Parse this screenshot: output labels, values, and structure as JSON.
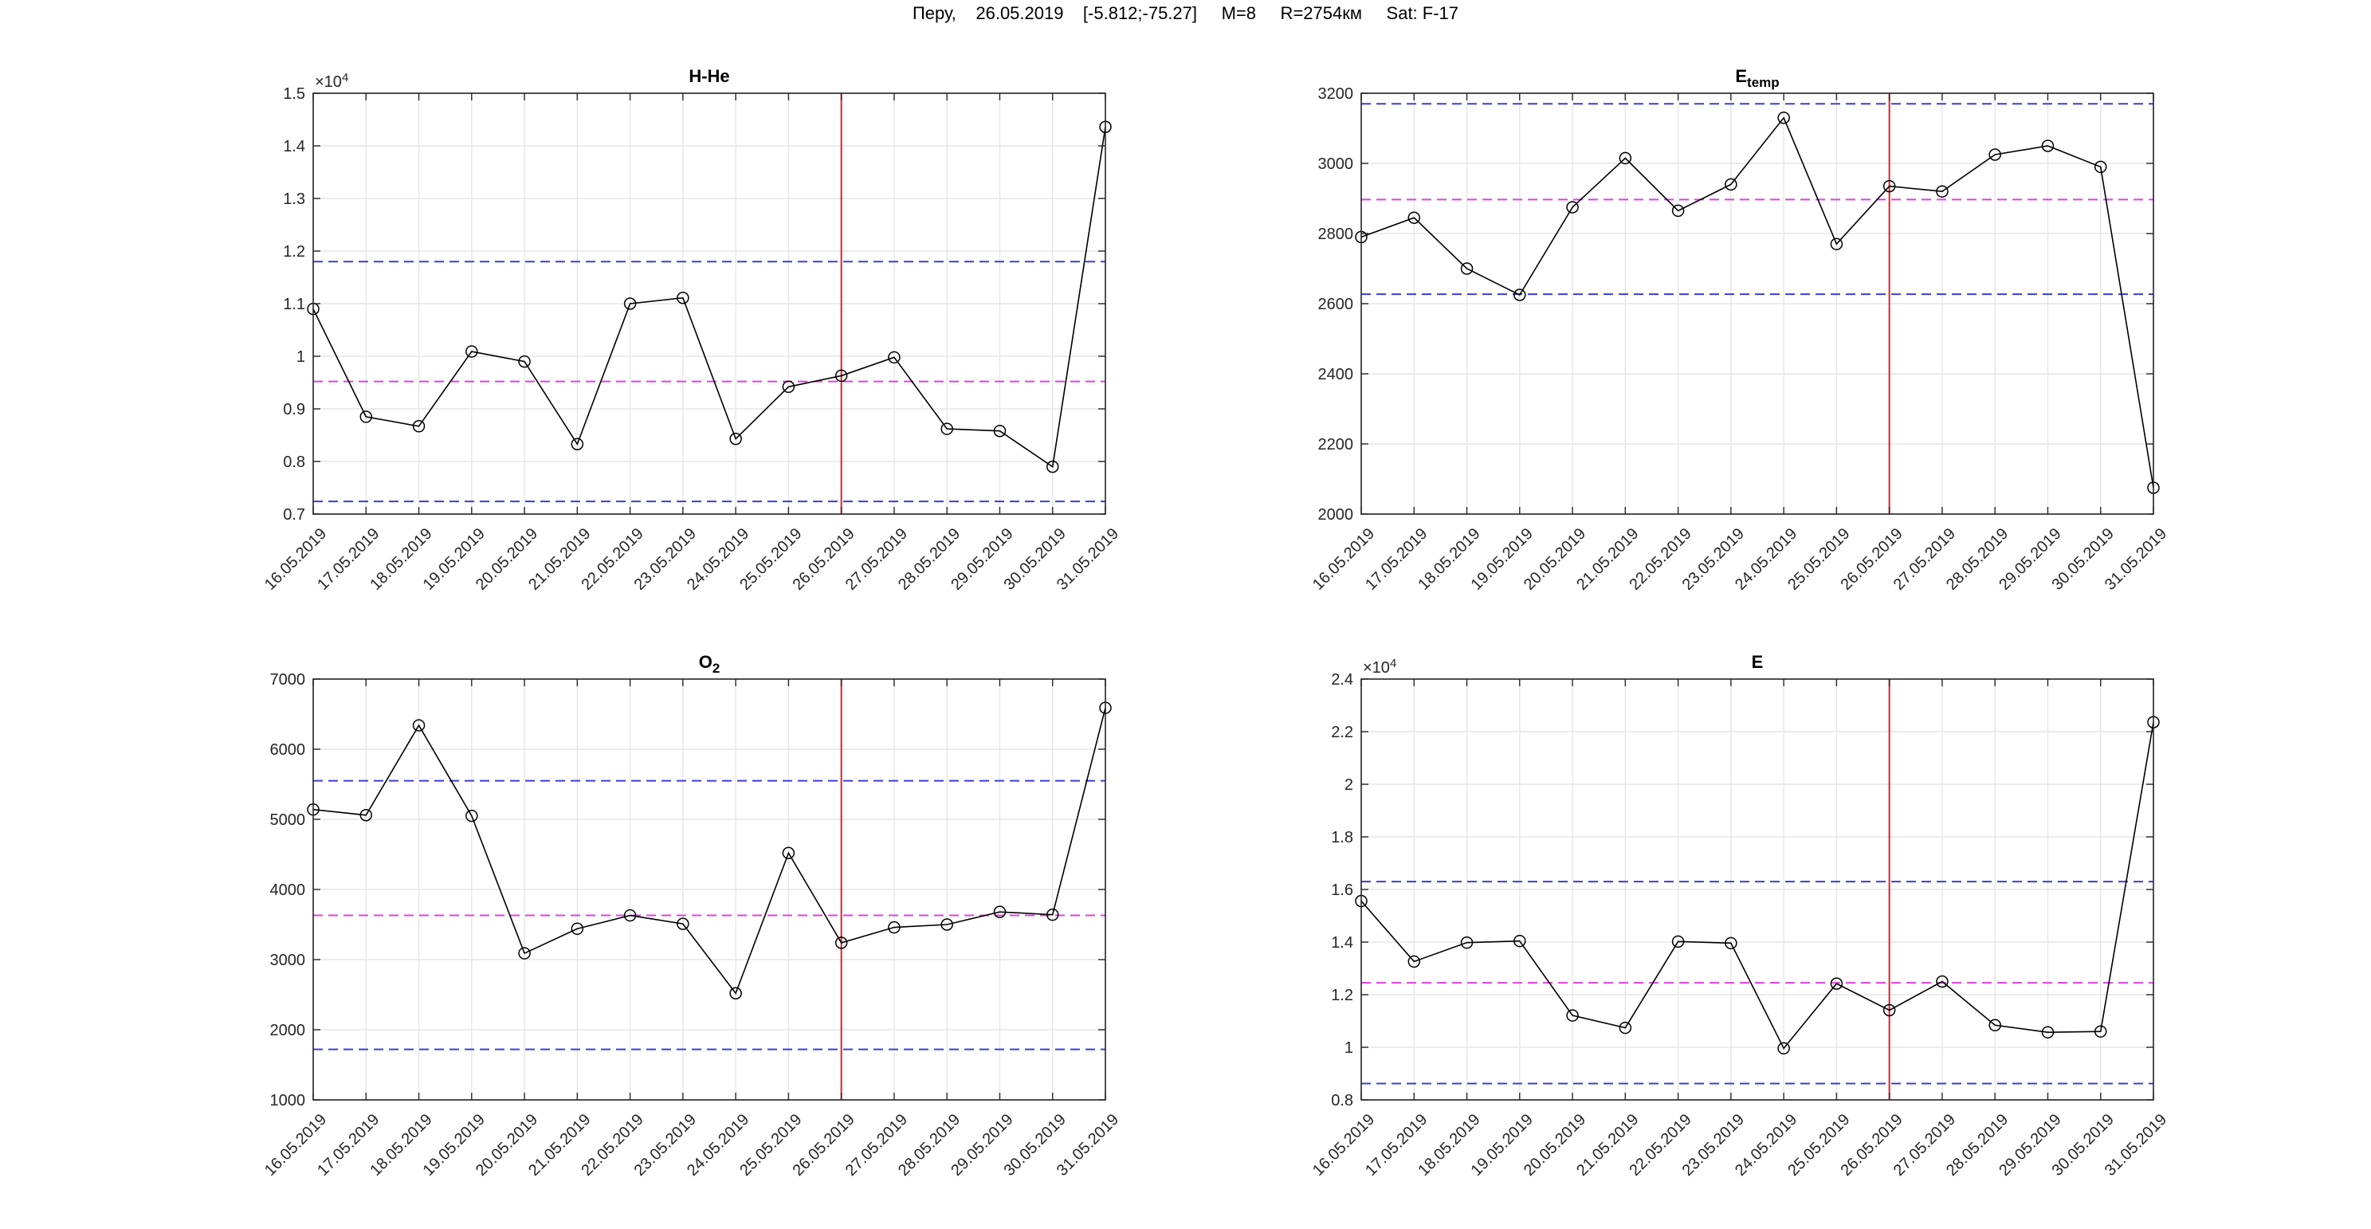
{
  "figure": {
    "suptitle": "Перу,    26.05.2019    [-5.812;-75.27]     M=8     R=2754км     Sat: F-17"
  },
  "colors": {
    "series": "#000000",
    "event_line": "#e0202a",
    "threshold_outer": "#3c3cd8",
    "threshold_mean": "#e040e0",
    "grid": "#e6e6e6",
    "axes": "#262626"
  },
  "chart_data": [
    {
      "type": "line",
      "title": "H-He",
      "title_sub": "",
      "exponent_label": "×10",
      "exponent_power": "4",
      "categories": [
        "16.05.2019",
        "17.05.2019",
        "18.05.2019",
        "19.05.2019",
        "20.05.2019",
        "21.05.2019",
        "22.05.2019",
        "23.05.2019",
        "24.05.2019",
        "25.05.2019",
        "26.05.2019",
        "27.05.2019",
        "28.05.2019",
        "29.05.2019",
        "30.05.2019",
        "31.05.2019"
      ],
      "values": [
        10900,
        8850,
        8670,
        10090,
        9900,
        8330,
        11000,
        11110,
        8430,
        9420,
        9630,
        9980,
        8620,
        8580,
        7900,
        14360
      ],
      "ylim": [
        7000,
        15000
      ],
      "yticks": [
        7000,
        8000,
        9000,
        10000,
        11000,
        12000,
        13000,
        14000,
        15000
      ],
      "ytick_labels": [
        "0.7",
        "0.8",
        "0.9",
        "1",
        "1.1",
        "1.2",
        "1.3",
        "1.4",
        "1.5"
      ],
      "thresholds": {
        "upper": 11800,
        "mean": 9520,
        "lower": 7240
      },
      "event_index": 10,
      "grid": true
    },
    {
      "type": "line",
      "title": "E",
      "title_sub": "temp",
      "exponent_label": "",
      "exponent_power": "",
      "categories": [
        "16.05.2019",
        "17.05.2019",
        "18.05.2019",
        "19.05.2019",
        "20.05.2019",
        "21.05.2019",
        "22.05.2019",
        "23.05.2019",
        "24.05.2019",
        "25.05.2019",
        "26.05.2019",
        "27.05.2019",
        "28.05.2019",
        "29.05.2019",
        "30.05.2019",
        "31.05.2019"
      ],
      "values": [
        2790,
        2845,
        2700,
        2625,
        2875,
        3015,
        2865,
        2940,
        3130,
        2770,
        2935,
        2920,
        3025,
        3050,
        2990,
        2075
      ],
      "ylim": [
        2000,
        3200
      ],
      "yticks": [
        2000,
        2200,
        2400,
        2600,
        2800,
        3000,
        3200
      ],
      "ytick_labels": [
        "2000",
        "2200",
        "2400",
        "2600",
        "2800",
        "3000",
        "3200"
      ],
      "thresholds": {
        "upper": 3170,
        "mean": 2897,
        "lower": 2627
      },
      "event_index": 10,
      "grid": true
    },
    {
      "type": "line",
      "title": "O",
      "title_sub": "2",
      "exponent_label": "",
      "exponent_power": "",
      "categories": [
        "16.05.2019",
        "17.05.2019",
        "18.05.2019",
        "19.05.2019",
        "20.05.2019",
        "21.05.2019",
        "22.05.2019",
        "23.05.2019",
        "24.05.2019",
        "25.05.2019",
        "26.05.2019",
        "27.05.2019",
        "28.05.2019",
        "29.05.2019",
        "30.05.2019",
        "31.05.2019"
      ],
      "values": [
        5140,
        5060,
        6340,
        5050,
        3090,
        3440,
        3630,
        3510,
        2520,
        4520,
        3240,
        3460,
        3500,
        3680,
        3640,
        6590
      ],
      "ylim": [
        1000,
        7000
      ],
      "yticks": [
        1000,
        2000,
        3000,
        4000,
        5000,
        6000,
        7000
      ],
      "ytick_labels": [
        "1000",
        "2000",
        "3000",
        "4000",
        "5000",
        "6000",
        "7000"
      ],
      "thresholds": {
        "upper": 5550,
        "mean": 3630,
        "lower": 1720
      },
      "event_index": 10,
      "grid": true
    },
    {
      "type": "line",
      "title": "E",
      "title_sub": "",
      "exponent_label": "×10",
      "exponent_power": "4",
      "categories": [
        "16.05.2019",
        "17.05.2019",
        "18.05.2019",
        "19.05.2019",
        "20.05.2019",
        "21.05.2019",
        "22.05.2019",
        "23.05.2019",
        "24.05.2019",
        "25.05.2019",
        "26.05.2019",
        "27.05.2019",
        "28.05.2019",
        "29.05.2019",
        "30.05.2019",
        "31.05.2019"
      ],
      "values": [
        15560,
        13260,
        13980,
        14040,
        11210,
        10740,
        14020,
        13960,
        9960,
        12420,
        11410,
        12500,
        10840,
        10570,
        10600,
        22360
      ],
      "ylim": [
        8000,
        24000
      ],
      "yticks": [
        8000,
        10000,
        12000,
        14000,
        16000,
        18000,
        20000,
        22000,
        24000
      ],
      "ytick_labels": [
        "0.8",
        "1",
        "1.2",
        "1.4",
        "1.6",
        "1.8",
        "2",
        "2.2",
        "2.4"
      ],
      "thresholds": {
        "upper": 16300,
        "mean": 12450,
        "lower": 8620
      },
      "event_index": 10,
      "grid": true
    }
  ]
}
